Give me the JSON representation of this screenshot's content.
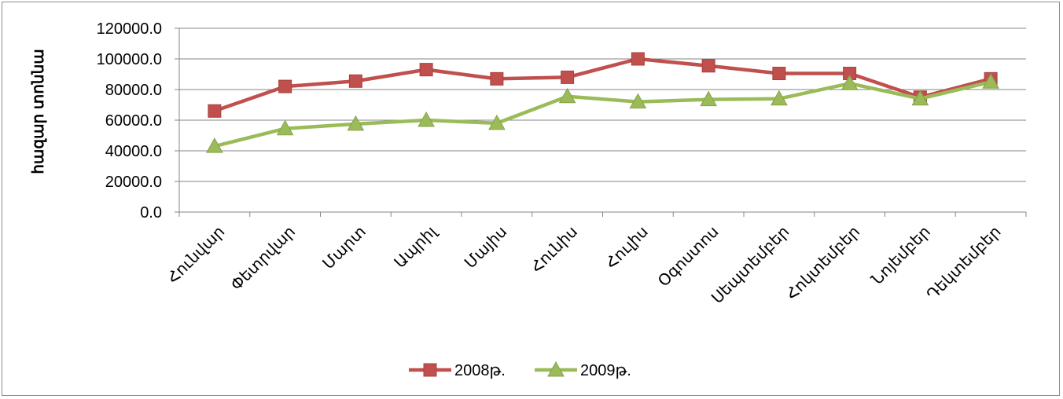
{
  "chart_data": {
    "type": "line",
    "title": "",
    "xlabel": "",
    "ylabel": "հազար տոննա",
    "categories": [
      "Հունվար",
      "Փետրվար",
      "Մարտ",
      "Ապրիլ",
      "Մայիս",
      "Հունիս",
      "Հուլիս",
      "Օգոստոս",
      "Սեպտեմբեր",
      "Հոկտեմբեր",
      "Նոյեմբեր",
      "Դեկտեմբեր"
    ],
    "ylim": [
      0,
      120000
    ],
    "yticks": [
      "0.0",
      "20000.0",
      "40000.0",
      "60000.0",
      "80000.0",
      "100000.0",
      "120000.0"
    ],
    "grid": true,
    "legend_position": "bottom",
    "series": [
      {
        "name": "2008թ.",
        "color": "#c0504d",
        "marker": "square",
        "values": [
          66000,
          82000,
          85500,
          93000,
          87000,
          88000,
          100000,
          95500,
          90500,
          90500,
          75000,
          87000
        ]
      },
      {
        "name": "2009թ.",
        "color": "#9bbb59",
        "marker": "triangle",
        "values": [
          43000,
          54500,
          57500,
          60000,
          58000,
          75500,
          72000,
          73500,
          74000,
          84000,
          74000,
          85000
        ]
      }
    ]
  }
}
